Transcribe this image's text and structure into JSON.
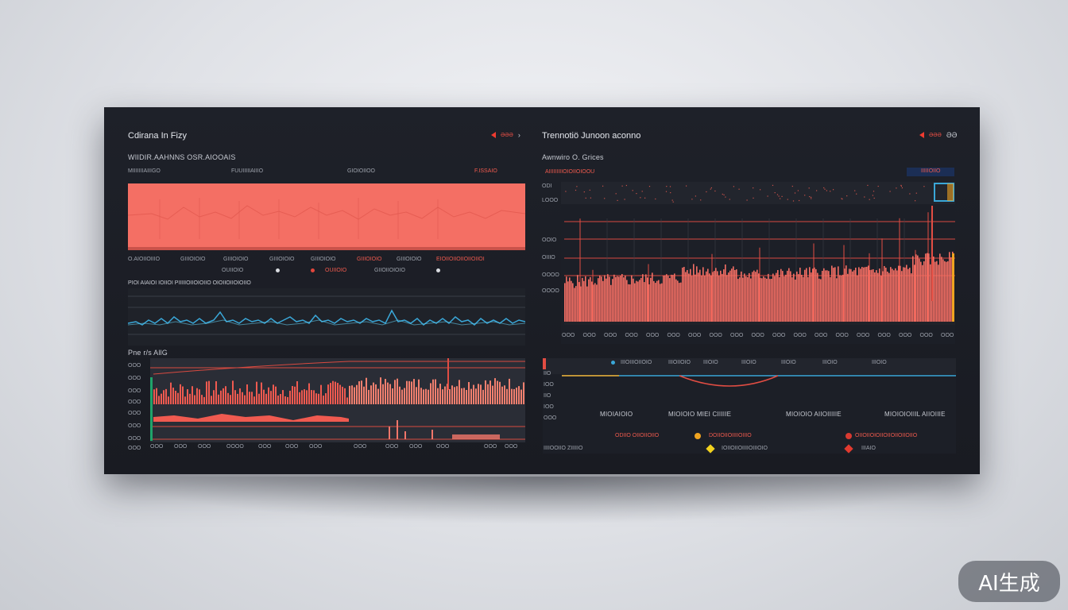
{
  "left": {
    "title": "Cdirana In Fizy",
    "controls": {
      "red_label": "ƏƏƏ",
      "chevron": "›"
    },
    "section1": {
      "heading": "WIIDIR.AAHNNS OSR.AIOOAIS",
      "header_labels": [
        "MIIIIIIIAIIIGO",
        "FUUIIIIIAIIIO",
        "GIOIOIIOO"
      ],
      "header_red": "F.ISSAIO",
      "legend_row1": [
        "O.AIOIIOIIIO",
        "GIIIOIOIO",
        "GIIIOIOIO",
        "GIIIOIOIO",
        "GIIIOIOIO",
        "GIIIOIOIO",
        "GIIIOIOIO",
        "EIOIIOIIOIIOIIOIIOI"
      ],
      "legend_row2": [
        "OUIIOIO",
        "OUIIOIO",
        "IIIOIIO",
        "GIIOIIOIOIO"
      ],
      "subheading": "PIOI AIAIOI IOIIOI  PIIIIIOIIOIOIIO OIOIIOIIOIOIIO"
    },
    "section2": {
      "heading": "Pne r/s AllG",
      "y_ticks": [
        "OOO",
        "OOO",
        "OOO",
        "OOO",
        "OOO",
        "OOO",
        "OOO",
        "OOO"
      ],
      "x_ticks": [
        "OOO",
        "OOO",
        "OOO",
        "OOOO",
        "OOO",
        "OOO",
        "OOO",
        "OOO",
        "OOO",
        "OOO",
        "OOO",
        "OOO",
        "OOO"
      ]
    }
  },
  "right": {
    "title": "Trennotiö Junoon aconno",
    "controls": {
      "red_label": "ƏƏƏ",
      "extra": "ƏƏ"
    },
    "section1": {
      "heading": "Awnwiro O. Grices",
      "header_red": "AIIIIIIIIIOIOIIOIOOU",
      "legend_label": "IIIIIOIIO",
      "y_ticks": [
        "ODI",
        "LOOO",
        "OOIO",
        "OIIIO",
        "OOOO",
        "OOOO"
      ],
      "x_ticks": [
        "OOO",
        "OOO",
        "OOO",
        "OOO",
        "OOO",
        "OOO",
        "OOO",
        "OOO",
        "OOO",
        "OOO",
        "OOO",
        "OOO",
        "OOO",
        "OOO",
        "OOO",
        "OOO",
        "OOO",
        "OOO",
        "OOO"
      ]
    },
    "section2": {
      "top_labels": [
        "IIIOIIIOIIOIO",
        "IIIOIIOIO",
        "IIIOIO",
        "IIIOIO",
        "IIIOIO",
        "IIIOIO",
        "IIIOIO"
      ],
      "y_ticks": [
        "IIO",
        "IOO",
        "IIO",
        "IOO",
        "OOO"
      ],
      "col_labels": [
        "MIOIAIOIO",
        "MIOIOIO MIEI CIIIIIE",
        "MIOIOIO AIIOIIIIIE",
        "MIOIOIOIIIL AIIOIIIE"
      ],
      "legend": [
        {
          "label": "ODIIO  OIIOIIOIIO",
          "color": "#e8463c"
        },
        {
          "label": "DOIIOIIOIIIIOIIIO",
          "color": "#f0a420"
        },
        {
          "label": "OIIOIIOIOIIOIIOIIOIIOIIO",
          "color": "#d83a31"
        }
      ],
      "legend2": [
        {
          "label": "IIIIOOIIO  ZIIIIIO",
          "color": "#e8463c"
        },
        {
          "label": "IOIIOIIOIIIIOIIIOIO",
          "color": "#f2d21e"
        },
        {
          "label": "IIIAIO",
          "color": "#e23a2f"
        }
      ]
    }
  },
  "colors": {
    "accent_red": "#ef5a4e",
    "accent_blue": "#3aa7d8",
    "panel_bg": "#1c1f26"
  },
  "badge": "AI生成"
}
